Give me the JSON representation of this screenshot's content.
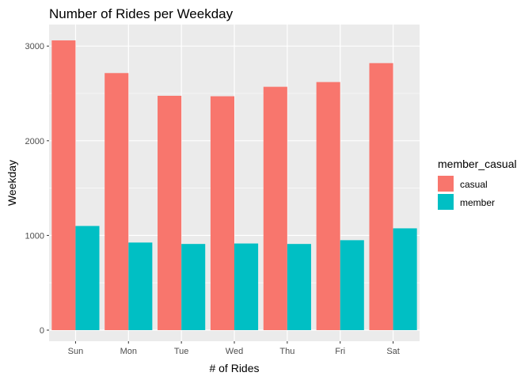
{
  "chart_data": {
    "type": "bar",
    "title": "Number of Rides per Weekday",
    "xlabel": "# of Rides",
    "ylabel": "Weekday",
    "categories": [
      "Sun",
      "Mon",
      "Tue",
      "Wed",
      "Thu",
      "Fri",
      "Sat"
    ],
    "series": [
      {
        "name": "casual",
        "color": "#F8766D",
        "values": [
          3060,
          2715,
          2475,
          2470,
          2570,
          2620,
          2820
        ]
      },
      {
        "name": "member",
        "color": "#00BFC4",
        "values": [
          1100,
          925,
          910,
          915,
          910,
          950,
          1075
        ]
      }
    ],
    "ylim": [
      0,
      3260
    ],
    "yticks": [
      0,
      1000,
      2000,
      3000
    ],
    "ytick_labels": [
      "0",
      "1000",
      "2000",
      "3000"
    ],
    "grid": true,
    "legend": {
      "title": "member_casual",
      "position": "right"
    },
    "panel_background": "#EBEBEB",
    "grid_color": "#FFFFFF"
  }
}
